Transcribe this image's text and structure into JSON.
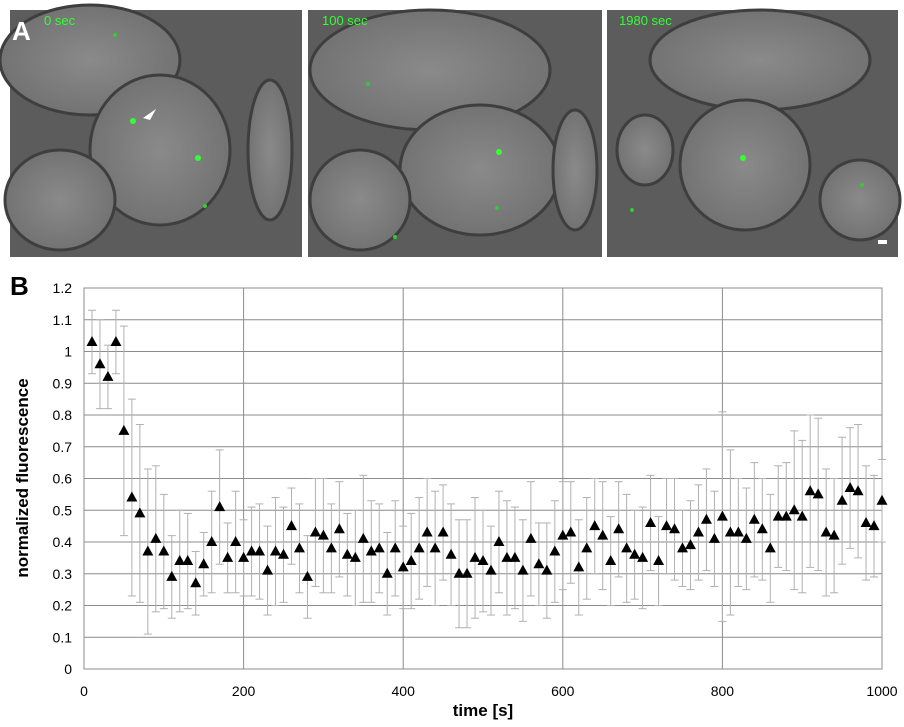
{
  "panel_a": {
    "label": "A",
    "images": [
      {
        "label": "0 sec"
      },
      {
        "label": "100 sec"
      },
      {
        "label": "1980 sec"
      }
    ]
  },
  "chart_data": {
    "type": "scatter",
    "panel_label": "B",
    "x_label": "time [s]",
    "y_label": "normalized fluorescence",
    "xlim": [
      0,
      1000
    ],
    "xticks": [
      0,
      200,
      400,
      600,
      800,
      1000
    ],
    "ylim": [
      0,
      1.2
    ],
    "yticks": [
      0,
      0.1,
      0.2,
      0.3,
      0.4,
      0.5,
      0.6,
      0.7,
      0.8,
      0.9,
      1,
      1.1,
      1.2
    ],
    "grid": true,
    "marker": "triangle",
    "color": "#000000",
    "error_color": "#b0b0b0",
    "x": [
      10,
      20,
      30,
      40,
      50,
      60,
      70,
      80,
      90,
      100,
      110,
      120,
      130,
      140,
      150,
      160,
      170,
      180,
      190,
      200,
      210,
      220,
      230,
      240,
      250,
      260,
      270,
      280,
      290,
      300,
      310,
      320,
      330,
      340,
      350,
      360,
      370,
      380,
      390,
      400,
      410,
      420,
      430,
      440,
      450,
      460,
      470,
      480,
      490,
      500,
      510,
      520,
      530,
      540,
      550,
      560,
      570,
      580,
      590,
      600,
      610,
      620,
      630,
      640,
      650,
      660,
      670,
      680,
      690,
      700,
      710,
      720,
      730,
      740,
      750,
      760,
      770,
      780,
      790,
      800,
      810,
      820,
      830,
      840,
      850,
      860,
      870,
      880,
      890,
      900,
      910,
      920,
      930,
      940,
      950,
      960,
      970,
      980,
      990,
      1000
    ],
    "values": [
      1.03,
      0.96,
      0.92,
      1.03,
      0.75,
      0.54,
      0.49,
      0.37,
      0.41,
      0.37,
      0.29,
      0.34,
      0.34,
      0.27,
      0.33,
      0.4,
      0.51,
      0.35,
      0.4,
      0.35,
      0.37,
      0.37,
      0.31,
      0.37,
      0.36,
      0.45,
      0.38,
      0.29,
      0.43,
      0.42,
      0.38,
      0.44,
      0.36,
      0.35,
      0.41,
      0.37,
      0.38,
      0.3,
      0.38,
      0.32,
      0.34,
      0.38,
      0.43,
      0.38,
      0.43,
      0.36,
      0.3,
      0.3,
      0.35,
      0.34,
      0.31,
      0.4,
      0.35,
      0.35,
      0.31,
      0.41,
      0.33,
      0.31,
      0.37,
      0.42,
      0.43,
      0.32,
      0.38,
      0.45,
      0.42,
      0.34,
      0.44,
      0.38,
      0.36,
      0.35,
      0.46,
      0.34,
      0.45,
      0.44,
      0.38,
      0.39,
      0.43,
      0.47,
      0.41,
      0.48,
      0.43,
      0.43,
      0.41,
      0.47,
      0.44,
      0.38,
      0.48,
      0.48,
      0.5,
      0.48,
      0.56,
      0.55,
      0.43,
      0.42,
      0.53,
      0.57,
      0.56,
      0.46,
      0.45,
      0.53
    ],
    "errors": [
      0.1,
      0.14,
      0.1,
      0.1,
      0.33,
      0.31,
      0.28,
      0.26,
      0.23,
      0.18,
      0.13,
      0.16,
      0.15,
      0.1,
      0.1,
      0.16,
      0.18,
      0.11,
      0.16,
      0.12,
      0.14,
      0.15,
      0.14,
      0.17,
      0.15,
      0.12,
      0.14,
      0.13,
      0.17,
      0.18,
      0.14,
      0.15,
      0.13,
      0.15,
      0.2,
      0.16,
      0.14,
      0.13,
      0.15,
      0.13,
      0.15,
      0.16,
      0.17,
      0.18,
      0.15,
      0.16,
      0.17,
      0.17,
      0.19,
      0.16,
      0.14,
      0.16,
      0.18,
      0.16,
      0.16,
      0.18,
      0.13,
      0.15,
      0.16,
      0.17,
      0.16,
      0.15,
      0.16,
      0.15,
      0.17,
      0.14,
      0.15,
      0.17,
      0.14,
      0.16,
      0.15,
      0.14,
      0.15,
      0.16,
      0.12,
      0.14,
      0.15,
      0.16,
      0.15,
      0.33,
      0.26,
      0.17,
      0.16,
      0.18,
      0.16,
      0.17,
      0.16,
      0.17,
      0.25,
      0.24,
      0.24,
      0.24,
      0.2,
      0.18,
      0.2,
      0.19,
      0.21,
      0.18,
      0.16,
      0.13
    ]
  }
}
